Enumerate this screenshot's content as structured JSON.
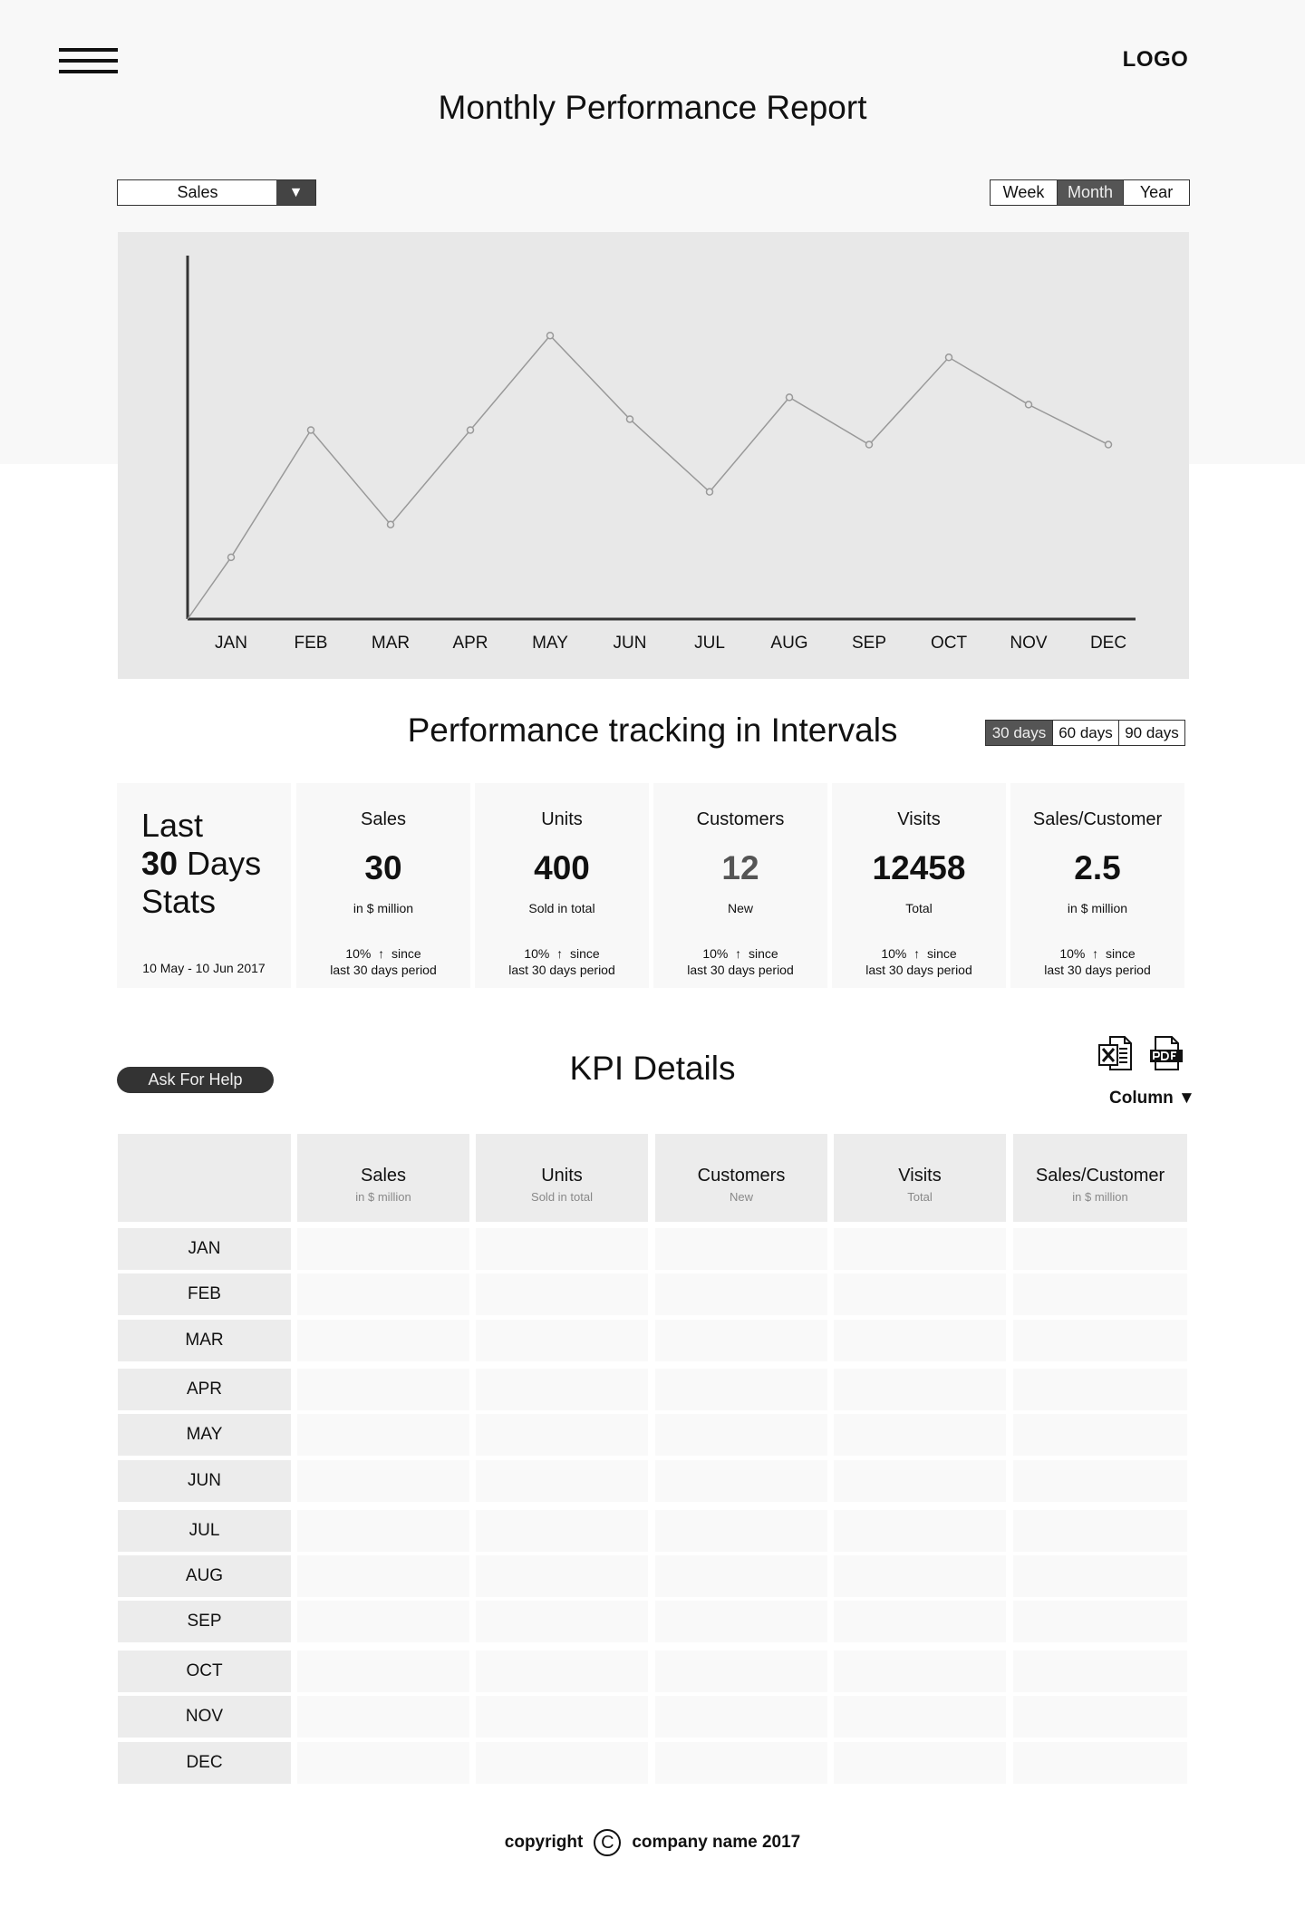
{
  "header": {
    "logo": "LOGO",
    "title": "Monthly Performance Report",
    "menu_icon": "hamburger-icon"
  },
  "controls": {
    "metric_select": {
      "value": "Sales",
      "arrow": "▼"
    },
    "period_tabs": [
      {
        "label": "Week",
        "active": false
      },
      {
        "label": "Month",
        "active": true
      },
      {
        "label": "Year",
        "active": false
      }
    ]
  },
  "chart_data": {
    "type": "line",
    "categories": [
      "JAN",
      "FEB",
      "MAR",
      "APR",
      "MAY",
      "JUN",
      "JUL",
      "AUG",
      "SEP",
      "OCT",
      "NOV",
      "DEC"
    ],
    "series": [
      {
        "values": [
          17,
          52,
          26,
          52,
          78,
          55,
          35,
          61,
          48,
          72,
          59,
          48
        ]
      }
    ],
    "title": "",
    "xlabel": "",
    "ylabel": "",
    "ylim": [
      0,
      100
    ],
    "grid": false,
    "legend": "none",
    "line_color": "#999999",
    "axis_color": "#333333"
  },
  "intervals": {
    "title": "Performance tracking in Intervals",
    "tabs": [
      {
        "label": "30 days",
        "active": true
      },
      {
        "label": "60 days",
        "active": false
      },
      {
        "label": "90 days",
        "active": false
      }
    ],
    "summary": {
      "line1": "Last",
      "line2_bold": "30",
      "line2_rest": " Days",
      "line3": "Stats",
      "range": "10 May - 10 Jun 2017"
    },
    "cards": [
      {
        "label": "Sales",
        "value": "30",
        "sub": "in $ million",
        "change_pct": "10%",
        "change_word": "since",
        "change_period": "last 30 days period",
        "muted": false
      },
      {
        "label": "Units",
        "value": "400",
        "sub": "Sold in total",
        "change_pct": "10%",
        "change_word": "since",
        "change_period": "last 30 days period",
        "muted": false
      },
      {
        "label": "Customers",
        "value": "12",
        "sub": "New",
        "change_pct": "10%",
        "change_word": "since",
        "change_period": "last 30 days period",
        "muted": true
      },
      {
        "label": "Visits",
        "value": "12458",
        "sub": "Total",
        "change_pct": "10%",
        "change_word": "since",
        "change_period": "last 30 days period",
        "muted": false
      },
      {
        "label": "Sales/Customer",
        "value": "2.5",
        "sub": "in $ million",
        "change_pct": "10%",
        "change_word": "since",
        "change_period": "last 30 days period",
        "muted": false
      }
    ]
  },
  "kpi": {
    "title": "KPI Details",
    "help_button": "Ask For Help",
    "column_menu": "Column ▼",
    "export_icons": [
      "excel-icon",
      "pdf-icon"
    ],
    "columns": [
      {
        "title": "Sales",
        "sub": "in $ million"
      },
      {
        "title": "Units",
        "sub": "Sold in total"
      },
      {
        "title": "Customers",
        "sub": "New"
      },
      {
        "title": "Visits",
        "sub": "Total"
      },
      {
        "title": "Sales/Customer",
        "sub": "in $ million"
      }
    ],
    "rows": [
      "JAN",
      "FEB",
      "MAR",
      "APR",
      "MAY",
      "JUN",
      "JUL",
      "AUG",
      "SEP",
      "OCT",
      "NOV",
      "DEC"
    ]
  },
  "footer": {
    "copyright": "copyright",
    "symbol": "C",
    "company": "company name 2017"
  }
}
